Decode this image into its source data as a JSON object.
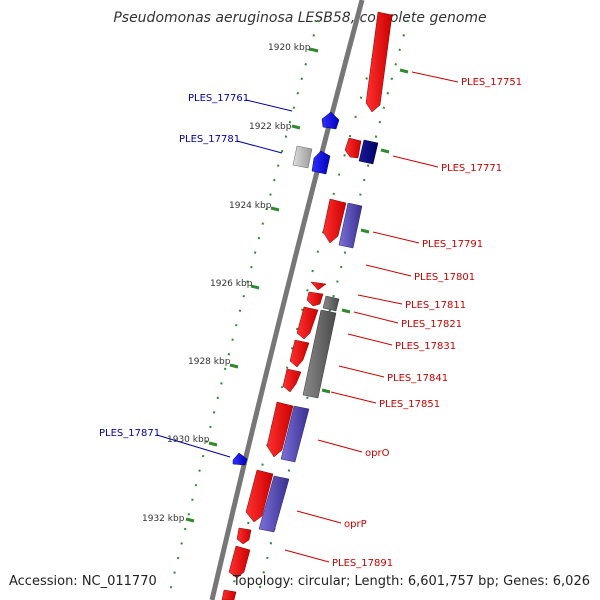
{
  "title": "Pseudomonas aeruginosa LESB58, complete genome",
  "footer": {
    "accession": "Accession: NC_011770",
    "summary": "Topology: circular; Length: 6,601,757 bp; Genes: 6,026"
  },
  "colors": {
    "forward_gene": "#ff0000",
    "reverse_gene": "#0000ee",
    "backbone": "#777777",
    "tick": "#2f8a2f",
    "label_fwd": "#cc0000",
    "label_rev": "#0000aa",
    "operon_purple": "#5a4fb0",
    "operon_grey": "#666666"
  },
  "scale_ticks": [
    "1920 kbp",
    "1922 kbp",
    "1924 kbp",
    "1926 kbp",
    "1928 kbp",
    "1930 kbp",
    "1932 kbp"
  ],
  "right_labels": [
    "PLES_17751",
    "PLES_17771",
    "PLES_17791",
    "PLES_17801",
    "PLES_17811",
    "PLES_17821",
    "PLES_17831",
    "PLES_17841",
    "PLES_17851",
    "oprO",
    "oprP",
    "PLES_17891"
  ],
  "left_labels": [
    "PLES_17761",
    "PLES_17781",
    "PLES_17871"
  ]
}
